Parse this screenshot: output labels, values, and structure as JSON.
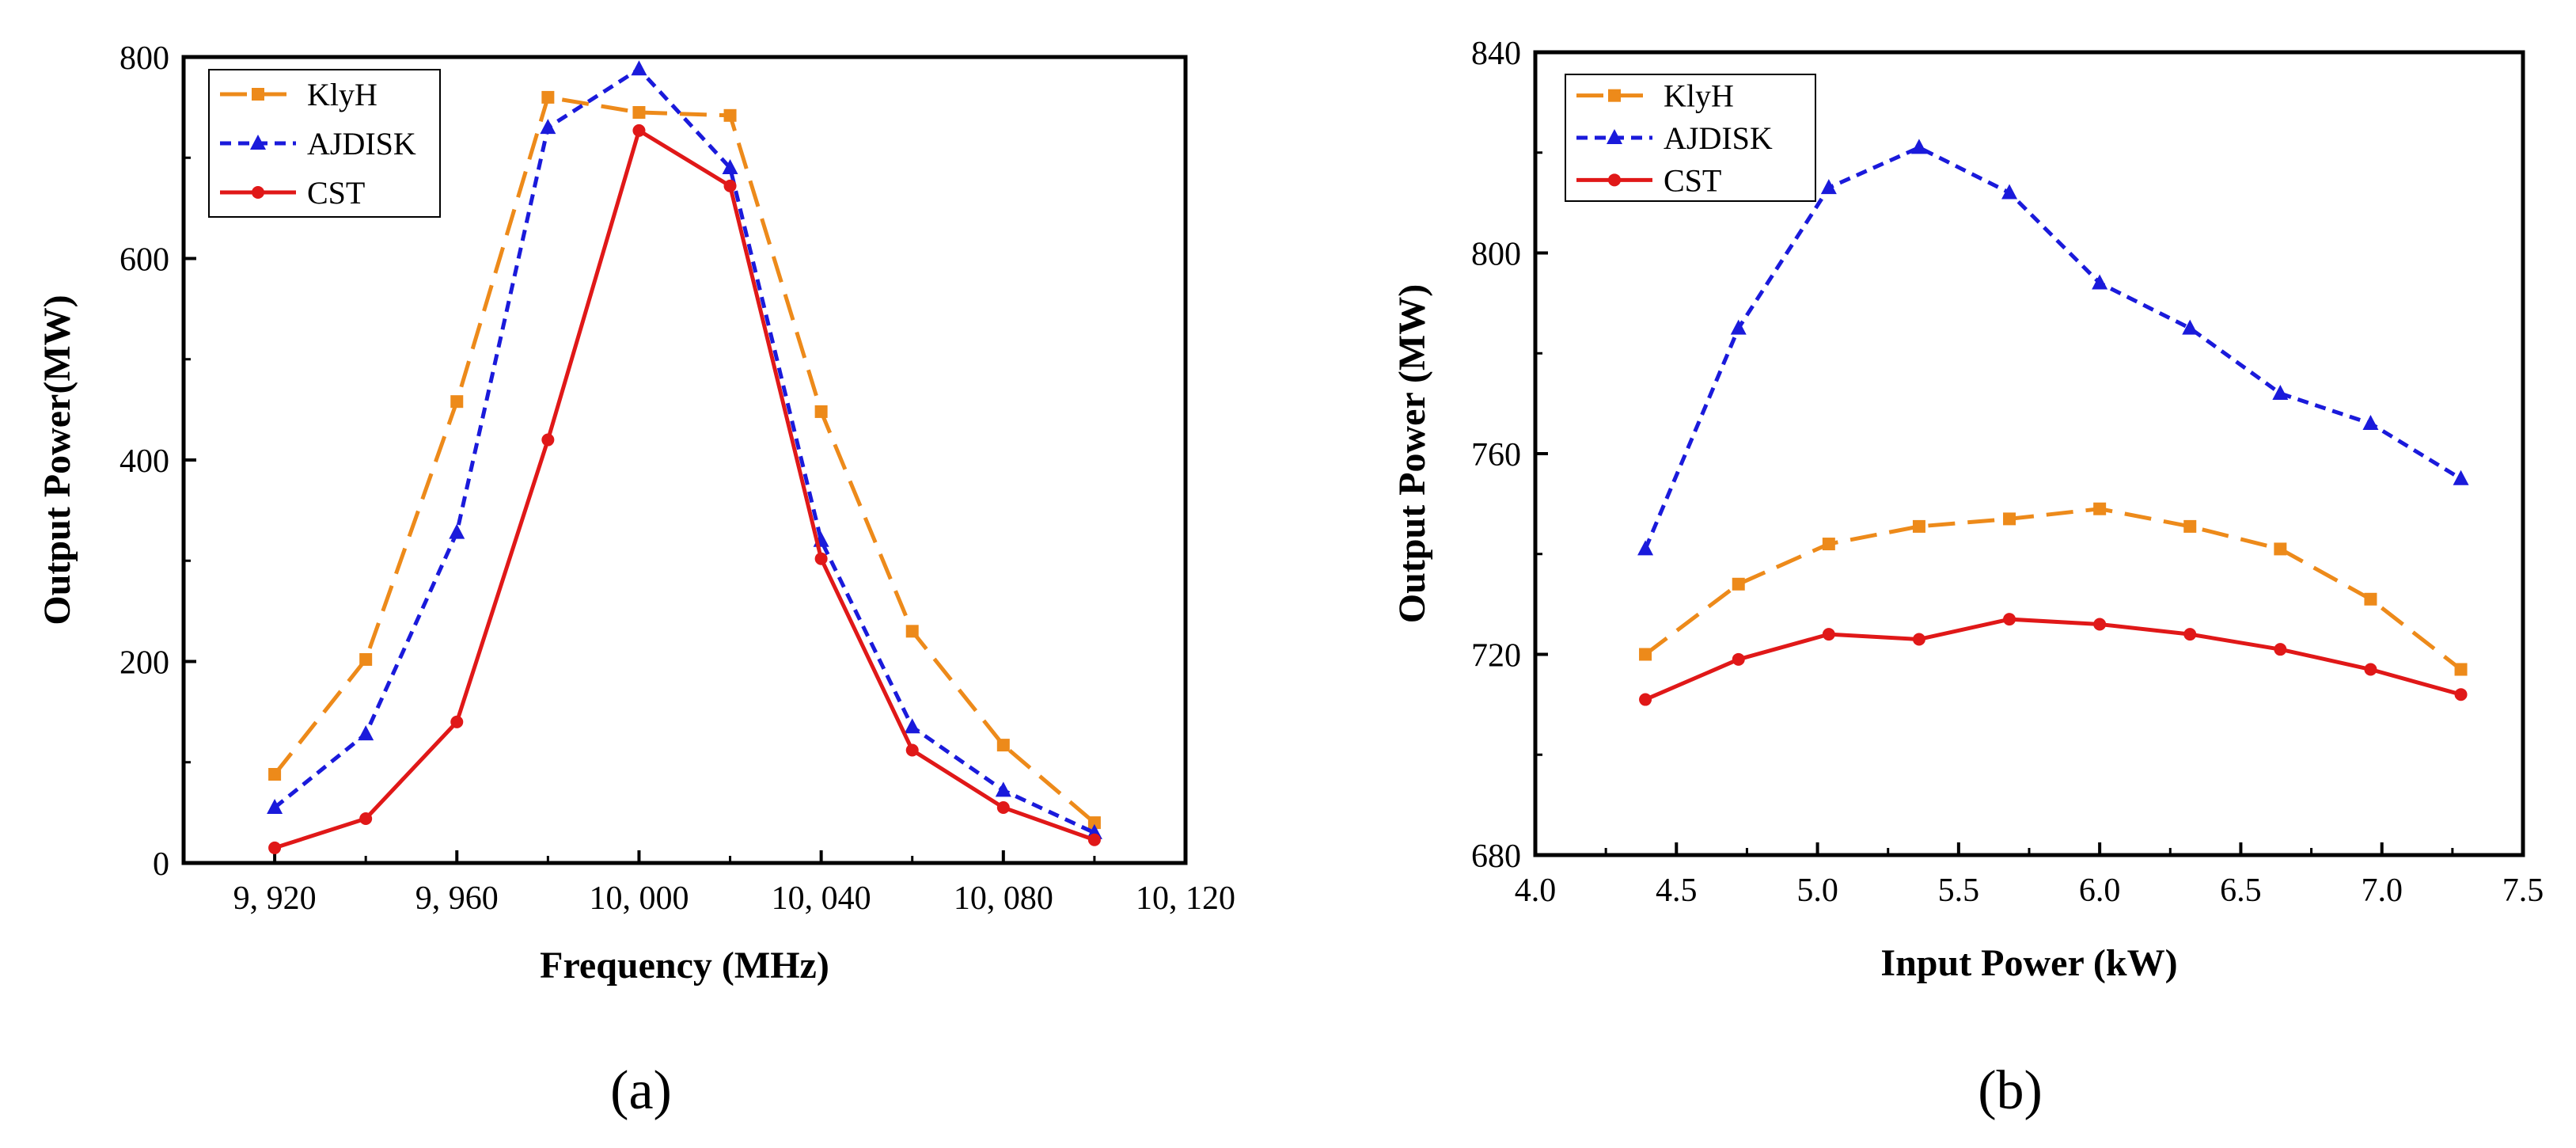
{
  "chart_data": [
    {
      "panel_label": "(a)",
      "type": "line",
      "xlabel": "Frequency (MHz)",
      "ylabel": "Output Power(MW)",
      "xlim": [
        9900,
        10120
      ],
      "ylim": [
        0,
        800
      ],
      "xticks": [
        9920,
        9960,
        10000,
        10040,
        10080,
        10120
      ],
      "xtick_labels": [
        "9, 920",
        "9, 960",
        "10, 000",
        "10, 040",
        "10, 080",
        "10, 120"
      ],
      "yticks": [
        0,
        200,
        400,
        600,
        800
      ],
      "ytick_labels": [
        "0",
        "200",
        "400",
        "600",
        "800"
      ],
      "grid": false,
      "legend_position": "top-left",
      "series": [
        {
          "name": "KlyH",
          "color": "#ED8A1A",
          "dash": "dashed",
          "marker": "square",
          "x": [
            9920,
            9940,
            9960,
            9980,
            10000,
            10020,
            10040,
            10060,
            10080,
            10100
          ],
          "y": [
            88,
            202,
            458,
            760,
            745,
            742,
            448,
            230,
            117,
            40
          ]
        },
        {
          "name": "AJDISK",
          "color": "#1A1ADB",
          "dash": "dotted",
          "marker": "triangle",
          "x": [
            9920,
            9940,
            9960,
            9980,
            10000,
            10020,
            10040,
            10060,
            10080,
            10100
          ],
          "y": [
            55,
            128,
            328,
            730,
            788,
            690,
            320,
            135,
            72,
            30
          ]
        },
        {
          "name": "CST",
          "color": "#E01818",
          "dash": "solid",
          "marker": "circle",
          "x": [
            9920,
            9940,
            9960,
            9980,
            10000,
            10020,
            10040,
            10060,
            10080,
            10100
          ],
          "y": [
            15,
            44,
            140,
            420,
            727,
            672,
            302,
            112,
            55,
            23
          ]
        }
      ]
    },
    {
      "panel_label": "(b)",
      "type": "line",
      "xlabel": "Input Power (kW)",
      "ylabel": "Output Power (MW)",
      "xlim": [
        4.0,
        7.5
      ],
      "ylim": [
        680,
        840
      ],
      "xticks": [
        4.0,
        4.5,
        5.0,
        5.5,
        6.0,
        6.5,
        7.0,
        7.5
      ],
      "xtick_labels": [
        "4.0",
        "4.5",
        "5.0",
        "5.5",
        "6.0",
        "6.5",
        "7.0",
        "7.5"
      ],
      "yticks": [
        680,
        720,
        760,
        800,
        840
      ],
      "ytick_labels": [
        "680",
        "720",
        "760",
        "800",
        "840"
      ],
      "grid": false,
      "legend_position": "top-left",
      "series": [
        {
          "name": "KlyH",
          "color": "#ED8A1A",
          "dash": "dashed",
          "marker": "square",
          "x": [
            4.39,
            4.72,
            5.04,
            5.36,
            5.68,
            6.0,
            6.32,
            6.64,
            6.96,
            7.28
          ],
          "y": [
            720,
            734,
            742,
            745.5,
            747,
            749,
            745.5,
            741,
            731,
            717
          ]
        },
        {
          "name": "AJDISK",
          "color": "#1A1ADB",
          "dash": "dotted",
          "marker": "triangle",
          "x": [
            4.39,
            4.72,
            5.04,
            5.36,
            5.68,
            6.0,
            6.32,
            6.64,
            6.96,
            7.28
          ],
          "y": [
            741,
            785,
            813,
            821,
            812,
            794,
            785,
            772,
            766,
            755
          ]
        },
        {
          "name": "CST",
          "color": "#E01818",
          "dash": "solid",
          "marker": "circle",
          "x": [
            4.39,
            4.72,
            5.04,
            5.36,
            5.68,
            6.0,
            6.32,
            6.64,
            6.96,
            7.28
          ],
          "y": [
            711,
            719,
            724,
            723,
            727,
            726,
            724,
            721,
            717,
            712
          ]
        }
      ]
    }
  ]
}
